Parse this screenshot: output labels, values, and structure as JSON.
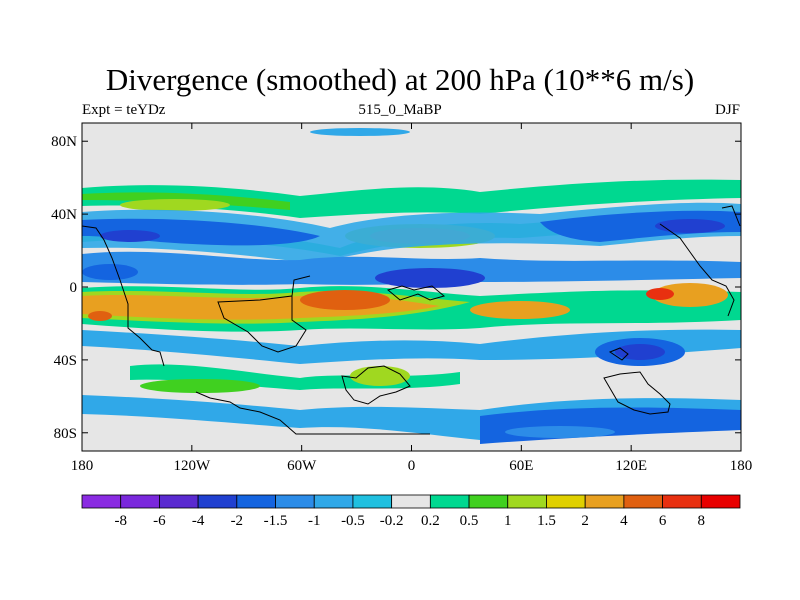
{
  "title": "Divergence (smoothed) at 200 hPa (10**6 m/s)",
  "subtitle_left": "Expt = teYDz",
  "subtitle_center": "515_0_MaBP",
  "subtitle_right": "DJF",
  "map": {
    "lon_labels": [
      "180",
      "120W",
      "60W",
      "0",
      "60E",
      "120E",
      "180"
    ],
    "lat_labels": [
      "80N",
      "40N",
      "0",
      "40S",
      "80S"
    ],
    "lon_range": [
      -180,
      180
    ],
    "lat_range": [
      -90,
      90
    ],
    "background_color": "#e6e6e6"
  },
  "colorbar": {
    "labels": [
      "-8",
      "-6",
      "-4",
      "-2",
      "-1.5",
      "-1",
      "-0.5",
      "-0.2",
      "0.2",
      "0.5",
      "1",
      "1.5",
      "2",
      "4",
      "6",
      "8"
    ],
    "colors": [
      "#8a2be2",
      "#7a28dc",
      "#5a2ad0",
      "#2040d0",
      "#1464e0",
      "#2c8ce8",
      "#30a8e8",
      "#20c0e0",
      "#e6e6e6",
      "#00d890",
      "#40d020",
      "#a0d820",
      "#e0d000",
      "#e8a020",
      "#e06010",
      "#e83010",
      "#e80000"
    ]
  }
}
